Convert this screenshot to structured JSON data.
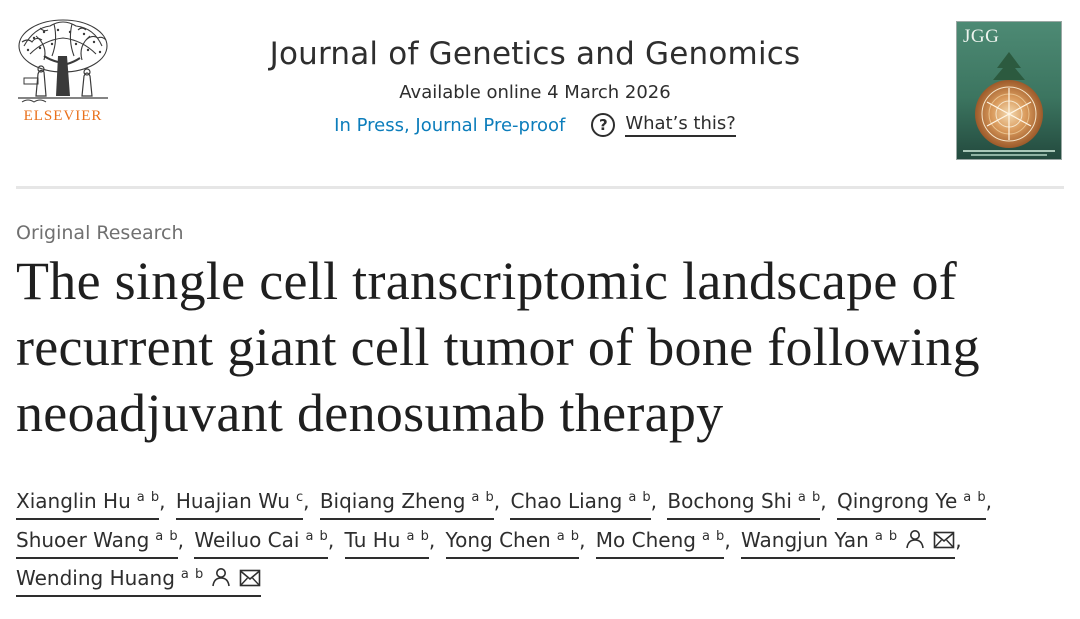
{
  "publisher": {
    "name": "ELSEVIER",
    "logo_icon": "elsevier-tree-logo",
    "brand_color": "#e9711c"
  },
  "journal": {
    "title": "Journal of Genetics and Genomics",
    "availability": "Available online 4 March 2026",
    "status_link": "In Press, Journal Pre-proof",
    "help_link": "What’s this?",
    "help_icon": "?",
    "cover_abbr": "JGG",
    "link_color": "#0c7dbb"
  },
  "article": {
    "type": "Original Research",
    "title": "The single cell transcriptomic landscape of recurrent giant cell tumor of bone following neoadjuvant denosumab therapy"
  },
  "authors": [
    {
      "name": "Xianglin Hu",
      "affil": "a b"
    },
    {
      "name": "Huajian Wu",
      "affil": "c"
    },
    {
      "name": "Biqiang Zheng",
      "affil": "a b"
    },
    {
      "name": "Chao Liang",
      "affil": "a b"
    },
    {
      "name": "Bochong Shi",
      "affil": "a b"
    },
    {
      "name": "Qingrong Ye",
      "affil": "a b"
    },
    {
      "name": "Shuoer Wang",
      "affil": "a b"
    },
    {
      "name": "Weiluo Cai",
      "affil": "a b"
    },
    {
      "name": "Tu Hu",
      "affil": "a b"
    },
    {
      "name": "Yong Chen",
      "affil": "a b"
    },
    {
      "name": "Mo Cheng",
      "affil": "a b"
    },
    {
      "name": "Wangjun Yan",
      "affil": "a b",
      "icons": [
        "person-icon",
        "envelope-icon"
      ]
    },
    {
      "name": "Wending Huang",
      "affil": "a b",
      "icons": [
        "person-icon",
        "envelope-icon"
      ]
    }
  ]
}
